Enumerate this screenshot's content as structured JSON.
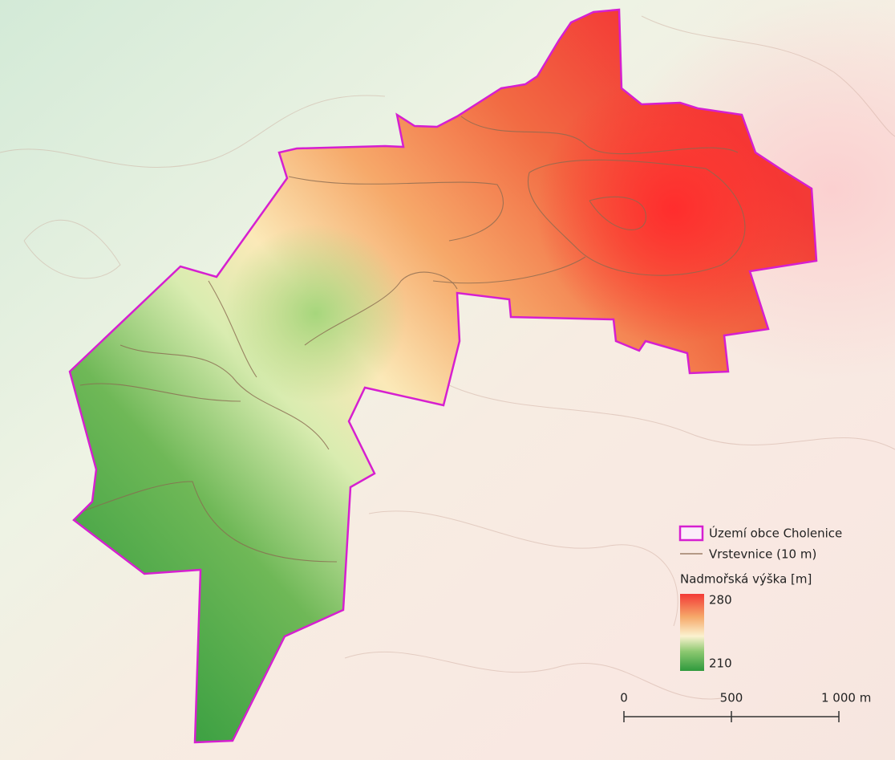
{
  "legend": {
    "items": [
      "Území obce Cholenice",
      "Vrstevnice (10 m)"
    ],
    "ramp_title": "Nadmořská výška [m]",
    "ramp_max": 280,
    "ramp_min": 210
  },
  "scale_bar": {
    "ticks": [
      0,
      500,
      {
        "value": 1000,
        "label": "1 000 m"
      }
    ]
  }
}
